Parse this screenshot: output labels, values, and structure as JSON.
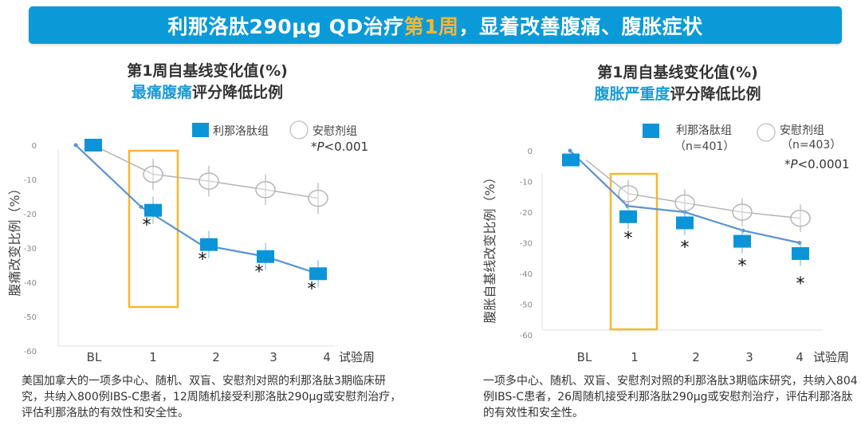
{
  "banner": {
    "part1": "利那洛肽290μg QD治疗",
    "highlight": "第1周",
    "part2": "，显着改善腹痛、腹胀症状",
    "bg_color": "#0a9ad8",
    "highlight_color": "#f6b733"
  },
  "colors": {
    "drug": "#0b95d8",
    "drug_line": "#5b93d3",
    "placebo": "#b5b5b5",
    "highlight_box": "#f6b733"
  },
  "panels": [
    {
      "title_line1": "第1周自基线变化值(%)",
      "title_line2_blue": "最痛腹痛",
      "title_line2_rest": "评分降低比例",
      "legend_drug": "利那洛肽组",
      "legend_drug_n": "",
      "legend_placebo": "安慰剂组",
      "legend_placebo_n": "",
      "pvalue_star": "*",
      "pvalue_p": "P",
      "pvalue_rest": "<0.001",
      "description": "美国加拿大的一项多中心、随机、双盲、安慰剂对照的利那洛肽3期临床研究，共纳入800例IBS-C患者，12周随机接受利那洛肽290μg或安慰剂治疗，评估利那洛肽的有效性和安全性。"
    },
    {
      "title_line1": "第1周自基线变化值(%)",
      "title_line2_blue": "腹胀严重度",
      "title_line2_rest": "评分降低比例",
      "legend_drug": "利那洛肽组",
      "legend_drug_n": "（n=401）",
      "legend_placebo": "安慰剂组",
      "legend_placebo_n": "（n=403）",
      "pvalue_star": "*",
      "pvalue_p": "P",
      "pvalue_rest": "<0.0001",
      "description": "一项多中心、随机、双盲、安慰剂对照的利那洛肽3期临床研究，共纳入804例IBS-C患者，26周随机接受利那洛肽290μg或安慰剂治疗，评估利那洛肽的有效性和安全性。"
    }
  ],
  "chart_data": [
    {
      "type": "line",
      "title": "第1周自基线变化值(%) 最痛腹痛评分降低比例",
      "xlabel": "试验周",
      "ylabel": "腹痛改变比例（%）",
      "categories": [
        "BL",
        "1",
        "2",
        "3",
        "4"
      ],
      "yticks": [
        0,
        -10,
        -20,
        -30,
        -40,
        -50,
        -60
      ],
      "ylim": [
        -60,
        0
      ],
      "series": [
        {
          "name": "利那洛肽组",
          "marker": "square",
          "values": [
            0,
            -19,
            -29,
            -32.5,
            -37.5
          ],
          "error": [
            0,
            4,
            4,
            4,
            4
          ],
          "significant": [
            false,
            true,
            true,
            true,
            true
          ]
        },
        {
          "name": "安慰剂组",
          "marker": "circle",
          "values": [
            0,
            -8.5,
            -10.5,
            -13,
            -15.5
          ],
          "error": [
            0,
            4.5,
            4.5,
            4.5,
            4.5
          ]
        }
      ],
      "highlight_category": "1",
      "annotation": "*P<0.001",
      "legend": "top-right"
    },
    {
      "type": "line",
      "title": "第1周自基线变化值(%) 腹胀严重度评分降低比例",
      "xlabel": "试验周",
      "ylabel": "腹胀自基线改变比例（%）",
      "categories": [
        "BL",
        "1",
        "2",
        "3",
        "4"
      ],
      "yticks": [
        0,
        -10,
        -20,
        -30,
        -40,
        -50,
        -60
      ],
      "ylim": [
        -60,
        0
      ],
      "series": [
        {
          "name": "利那洛肽组 (n=401)",
          "marker": "square",
          "values": [
            -3,
            -21.5,
            -23.5,
            -29.5,
            -33.5
          ],
          "trend_line": [
            0,
            -18,
            -20,
            -26,
            -30
          ],
          "error": [
            0,
            4,
            4,
            4,
            4
          ],
          "significant": [
            false,
            true,
            true,
            true,
            true
          ]
        },
        {
          "name": "安慰剂组 (n=403)",
          "marker": "circle",
          "values": [
            -3,
            -14,
            -17,
            -20,
            -22
          ],
          "error": [
            0,
            4.5,
            4.5,
            4.5,
            4.5
          ]
        }
      ],
      "highlight_category": "1",
      "annotation": "*P<0.0001",
      "legend": "top-right"
    }
  ]
}
